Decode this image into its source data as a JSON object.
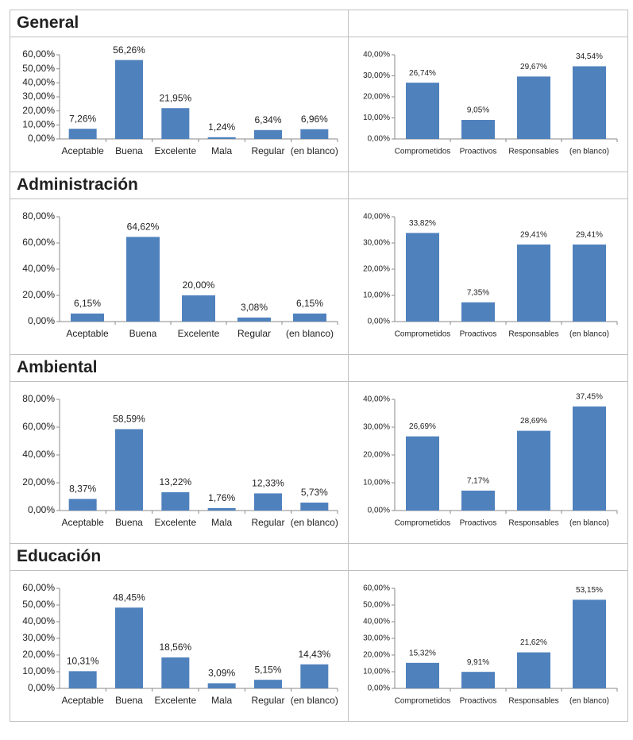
{
  "sections": [
    "General",
    "Administración",
    "Ambiental",
    "Educación"
  ],
  "chart_data": [
    {
      "type": "bar",
      "color": "#4f81bd",
      "categories": [
        "Aceptable",
        "Buena",
        "Excelente",
        "Mala",
        "Regular",
        "(en blanco)"
      ],
      "values": [
        7.26,
        56.26,
        21.95,
        1.24,
        6.34,
        6.96
      ],
      "value_labels": [
        "7,26%",
        "56,26%",
        "21,95%",
        "1,24%",
        "6,34%",
        "6,96%"
      ],
      "ylim": [
        0,
        60
      ],
      "yticks": [
        {
          "value": 0,
          "label": "0,00%"
        },
        {
          "value": 10,
          "label": "10,00%"
        },
        {
          "value": 20,
          "label": "20,00%"
        },
        {
          "value": 30,
          "label": "30,00%"
        },
        {
          "value": 40,
          "label": "40,00%"
        },
        {
          "value": 50,
          "label": "50,00%"
        },
        {
          "value": 60,
          "label": "60,00%"
        }
      ]
    },
    {
      "type": "bar",
      "color": "#4f81bd",
      "categories": [
        "Comprometidos",
        "Proactivos",
        "Responsables",
        "(en blanco)"
      ],
      "values": [
        26.74,
        9.05,
        29.67,
        34.54
      ],
      "value_labels": [
        "26,74%",
        "9,05%",
        "29,67%",
        "34,54%"
      ],
      "ylim": [
        0,
        40
      ],
      "yticks": [
        {
          "value": 0,
          "label": "0,00%"
        },
        {
          "value": 10,
          "label": "10,00%"
        },
        {
          "value": 20,
          "label": "20,00%"
        },
        {
          "value": 30,
          "label": "30,00%"
        },
        {
          "value": 40,
          "label": "40,00%"
        }
      ]
    },
    {
      "type": "bar",
      "color": "#4f81bd",
      "categories": [
        "Aceptable",
        "Buena",
        "Excelente",
        "Regular",
        "(en blanco)"
      ],
      "values": [
        6.15,
        64.62,
        20.0,
        3.08,
        6.15
      ],
      "value_labels": [
        "6,15%",
        "64,62%",
        "20,00%",
        "3,08%",
        "6,15%"
      ],
      "ylim": [
        0,
        80
      ],
      "yticks": [
        {
          "value": 0,
          "label": "0,00%"
        },
        {
          "value": 20,
          "label": "20,00%"
        },
        {
          "value": 40,
          "label": "40,00%"
        },
        {
          "value": 60,
          "label": "60,00%"
        },
        {
          "value": 80,
          "label": "80,00%"
        }
      ]
    },
    {
      "type": "bar",
      "color": "#4f81bd",
      "categories": [
        "Comprometidos",
        "Proactivos",
        "Responsables",
        "(en blanco)"
      ],
      "values": [
        33.82,
        7.35,
        29.41,
        29.41
      ],
      "value_labels": [
        "33,82%",
        "7,35%",
        "29,41%",
        "29,41%"
      ],
      "ylim": [
        0,
        40
      ],
      "yticks": [
        {
          "value": 0,
          "label": "0,00%"
        },
        {
          "value": 10,
          "label": "10,00%"
        },
        {
          "value": 20,
          "label": "20,00%"
        },
        {
          "value": 30,
          "label": "30,00%"
        },
        {
          "value": 40,
          "label": "40,00%"
        }
      ]
    },
    {
      "type": "bar",
      "color": "#4f81bd",
      "categories": [
        "Aceptable",
        "Buena",
        "Excelente",
        "Mala",
        "Regular",
        "(en blanco)"
      ],
      "values": [
        8.37,
        58.59,
        13.22,
        1.76,
        12.33,
        5.73
      ],
      "value_labels": [
        "8,37%",
        "58,59%",
        "13,22%",
        "1,76%",
        "12,33%",
        "5,73%"
      ],
      "ylim": [
        0,
        80
      ],
      "yticks": [
        {
          "value": 0,
          "label": "0,00%"
        },
        {
          "value": 20,
          "label": "20,00%"
        },
        {
          "value": 40,
          "label": "40,00%"
        },
        {
          "value": 60,
          "label": "60,00%"
        },
        {
          "value": 80,
          "label": "80,00%"
        }
      ]
    },
    {
      "type": "bar",
      "color": "#4f81bd",
      "categories": [
        "Comprometidos",
        "Proactivos",
        "Responsables",
        "(en blanco)"
      ],
      "values": [
        26.69,
        7.17,
        28.69,
        37.45
      ],
      "value_labels": [
        "26,69%",
        "7,17%",
        "28,69%",
        "37,45%"
      ],
      "ylim": [
        0,
        40
      ],
      "yticks": [
        {
          "value": 0,
          "label": "0,00%"
        },
        {
          "value": 10,
          "label": "10,00%"
        },
        {
          "value": 20,
          "label": "20,00%"
        },
        {
          "value": 30,
          "label": "30,00%"
        },
        {
          "value": 40,
          "label": "40,00%"
        }
      ]
    },
    {
      "type": "bar",
      "color": "#4f81bd",
      "categories": [
        "Aceptable",
        "Buena",
        "Excelente",
        "Mala",
        "Regular",
        "(en blanco)"
      ],
      "values": [
        10.31,
        48.45,
        18.56,
        3.09,
        5.15,
        14.43
      ],
      "value_labels": [
        "10,31%",
        "48,45%",
        "18,56%",
        "3,09%",
        "5,15%",
        "14,43%"
      ],
      "ylim": [
        0,
        60
      ],
      "yticks": [
        {
          "value": 0,
          "label": "0,00%"
        },
        {
          "value": 10,
          "label": "10,00%"
        },
        {
          "value": 20,
          "label": "20,00%"
        },
        {
          "value": 30,
          "label": "30,00%"
        },
        {
          "value": 40,
          "label": "40,00%"
        },
        {
          "value": 50,
          "label": "50,00%"
        },
        {
          "value": 60,
          "label": "60,00%"
        }
      ]
    },
    {
      "type": "bar",
      "color": "#4f81bd",
      "categories": [
        "Comprometidos",
        "Proactivos",
        "Responsables",
        "(en blanco)"
      ],
      "values": [
        15.32,
        9.91,
        21.62,
        53.15
      ],
      "value_labels": [
        "15,32%",
        "9,91%",
        "21,62%",
        "53,15%"
      ],
      "ylim": [
        0,
        60
      ],
      "yticks": [
        {
          "value": 0,
          "label": "0,00%"
        },
        {
          "value": 10,
          "label": "10,00%"
        },
        {
          "value": 20,
          "label": "20,00%"
        },
        {
          "value": 30,
          "label": "30,00%"
        },
        {
          "value": 40,
          "label": "40,00%"
        },
        {
          "value": 50,
          "label": "50,00%"
        },
        {
          "value": 60,
          "label": "60,00%"
        }
      ]
    }
  ]
}
